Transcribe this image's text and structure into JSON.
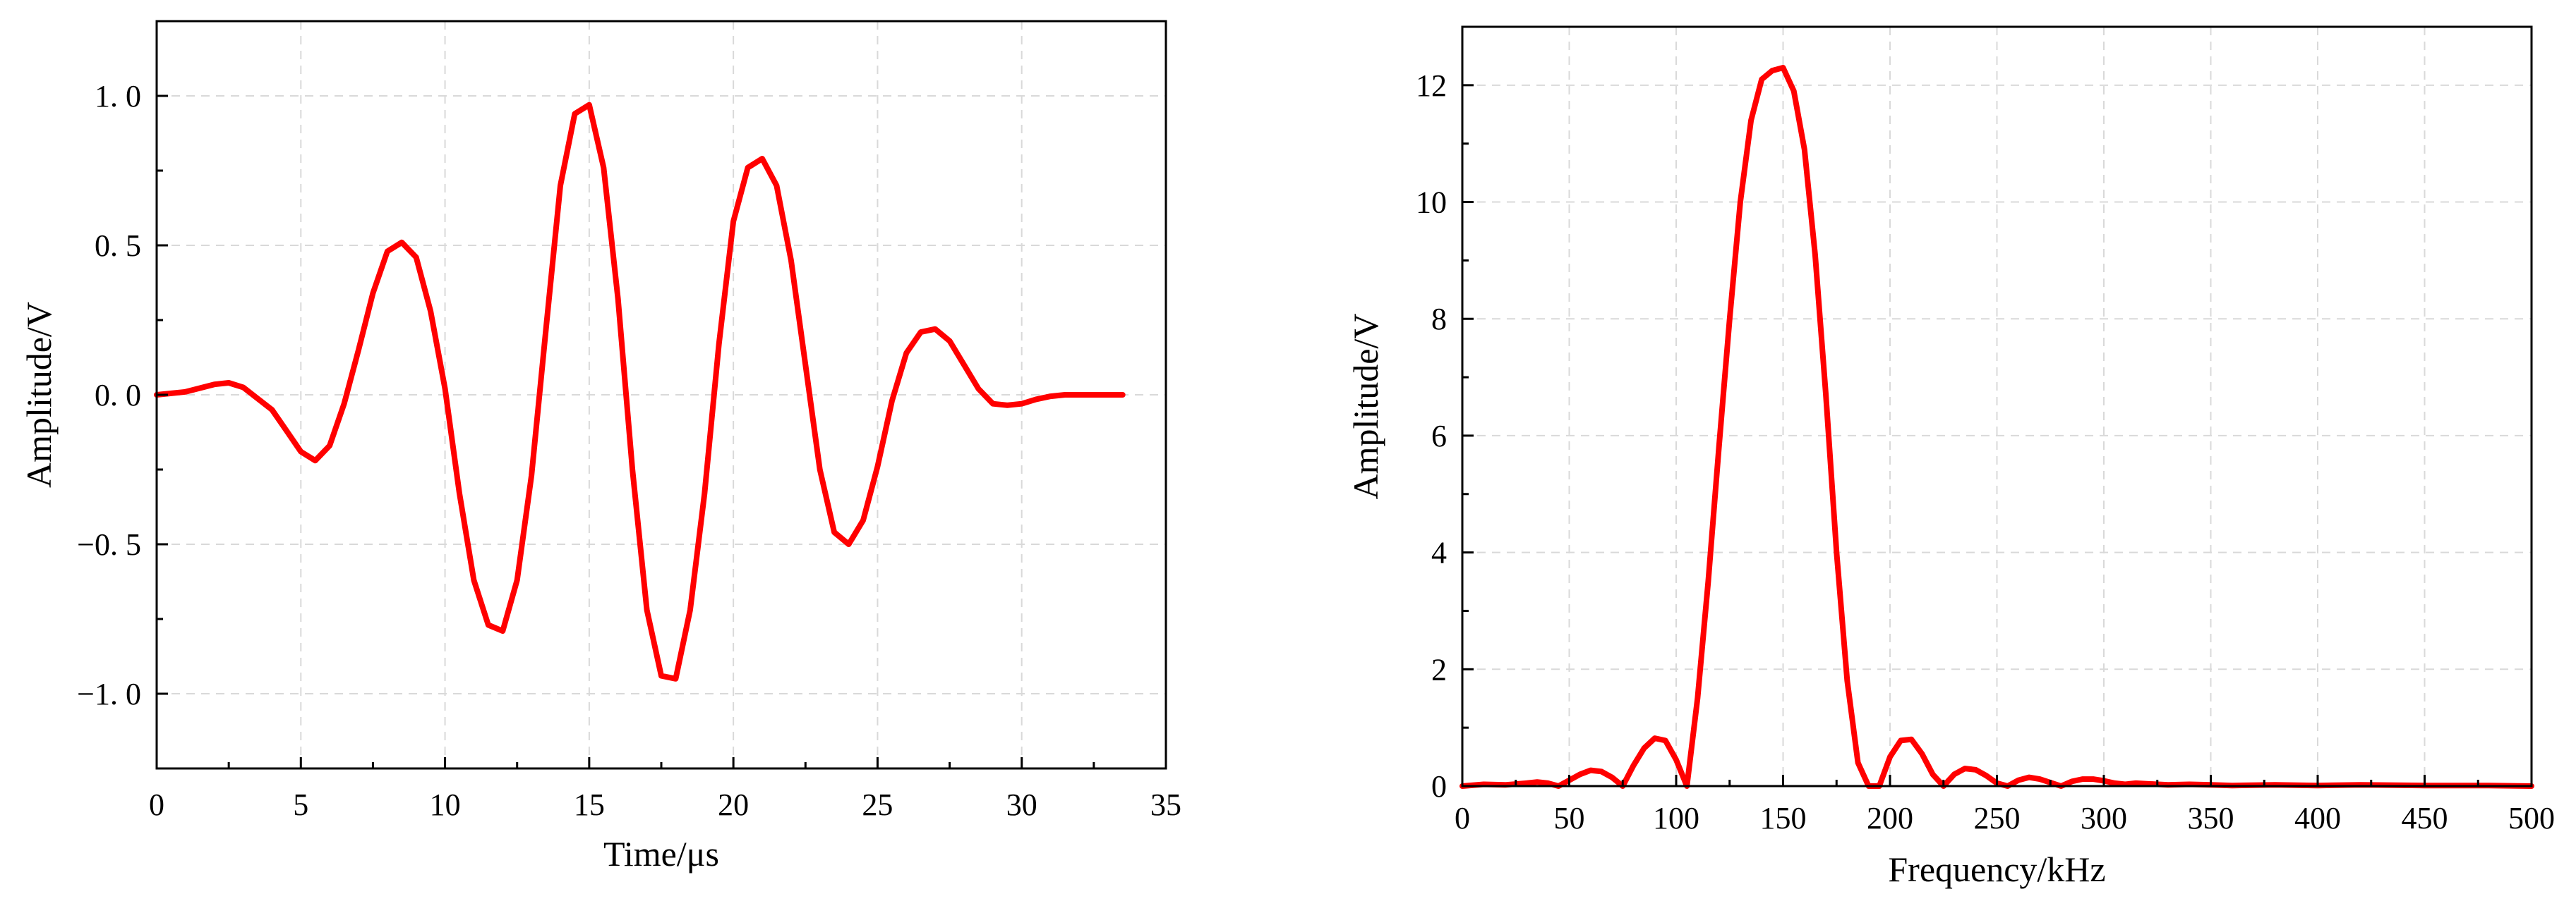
{
  "colors": {
    "series": "#ff0000",
    "grid": "#d9d9d9",
    "axis": "#000000"
  },
  "chart_data": [
    {
      "type": "line",
      "xlabel": "Time/μs",
      "ylabel": "Amplitude/V",
      "xlim": [
        0,
        35
      ],
      "ylim": [
        -1.25,
        1.25
      ],
      "xticks": [
        0,
        5,
        10,
        15,
        20,
        25,
        30,
        35
      ],
      "xtick_labels": [
        "0",
        "5",
        "10",
        "15",
        "20",
        "25",
        "30",
        "35"
      ],
      "yticks": [
        -1.0,
        -0.5,
        0.0,
        0.5,
        1.0
      ],
      "ytick_labels": [
        "−1. 0",
        "−0. 5",
        "0. 0",
        "0. 5",
        "1. 0"
      ],
      "grid": true,
      "series": [
        {
          "color": "#ff0000",
          "x": [
            0,
            1,
            2,
            2.5,
            3,
            4,
            4.5,
            5,
            5.5,
            6,
            6.5,
            7,
            7.5,
            8,
            8.5,
            9,
            9.5,
            10,
            10.5,
            11,
            11.5,
            12,
            12.5,
            13,
            13.5,
            14,
            14.5,
            15,
            15.5,
            16,
            16.5,
            17,
            17.5,
            18,
            18.5,
            19,
            19.5,
            20,
            20.5,
            21,
            21.5,
            22,
            22.5,
            23,
            23.5,
            24,
            24.5,
            25,
            25.5,
            26,
            26.5,
            27,
            27.5,
            28,
            28.5,
            29,
            29.5,
            30,
            30.5,
            31,
            31.5,
            32,
            32.5,
            33,
            33.5
          ],
          "y": [
            0.0,
            0.01,
            0.035,
            0.04,
            0.025,
            -0.05,
            -0.12,
            -0.19,
            -0.22,
            -0.17,
            -0.03,
            0.15,
            0.34,
            0.48,
            0.51,
            0.46,
            0.28,
            0.02,
            -0.33,
            -0.62,
            -0.77,
            -0.79,
            -0.62,
            -0.27,
            0.22,
            0.7,
            0.94,
            0.97,
            0.76,
            0.32,
            -0.25,
            -0.72,
            -0.94,
            -0.95,
            -0.72,
            -0.33,
            0.17,
            0.58,
            0.76,
            0.79,
            0.7,
            0.45,
            0.1,
            -0.25,
            -0.46,
            -0.5,
            -0.42,
            -0.24,
            -0.02,
            0.14,
            0.21,
            0.22,
            0.18,
            0.1,
            0.02,
            -0.03,
            -0.035,
            -0.03,
            -0.015,
            -0.005,
            0.0,
            0.0,
            0.0,
            0.0,
            0.0
          ]
        }
      ]
    },
    {
      "type": "line",
      "xlabel": "Frequency/kHz",
      "ylabel": "Amplitude/V",
      "xlim": [
        0,
        500
      ],
      "ylim": [
        0,
        13
      ],
      "xticks": [
        0,
        50,
        100,
        150,
        200,
        250,
        300,
        350,
        400,
        450,
        500
      ],
      "xtick_labels": [
        "0",
        "50",
        "100",
        "150",
        "200",
        "250",
        "300",
        "350",
        "400",
        "450",
        "500"
      ],
      "yticks": [
        0,
        2,
        4,
        6,
        8,
        10,
        12
      ],
      "ytick_labels": [
        "0",
        "2",
        "4",
        "6",
        "8",
        "10",
        "12"
      ],
      "grid": true,
      "series": [
        {
          "color": "#ff0000",
          "x": [
            0,
            10,
            20,
            30,
            35,
            40,
            45,
            50,
            55,
            60,
            65,
            70,
            75,
            80,
            85,
            90,
            95,
            100,
            105,
            110,
            115,
            120,
            125,
            130,
            135,
            140,
            145,
            150,
            155,
            160,
            165,
            170,
            175,
            180,
            185,
            190,
            195,
            200,
            205,
            210,
            215,
            220,
            225,
            230,
            235,
            240,
            245,
            250,
            255,
            260,
            265,
            270,
            275,
            280,
            285,
            290,
            295,
            300,
            305,
            310,
            315,
            320,
            330,
            340,
            350,
            360,
            380,
            400,
            420,
            450,
            480,
            500
          ],
          "y": [
            0.0,
            0.03,
            0.02,
            0.05,
            0.07,
            0.05,
            0.0,
            0.1,
            0.2,
            0.27,
            0.25,
            0.15,
            0.0,
            0.35,
            0.65,
            0.82,
            0.78,
            0.45,
            0.0,
            1.5,
            3.5,
            5.8,
            8.0,
            10.0,
            11.4,
            12.1,
            12.25,
            12.3,
            11.9,
            10.9,
            9.1,
            6.7,
            4.0,
            1.8,
            0.4,
            0.0,
            0.0,
            0.5,
            0.78,
            0.8,
            0.55,
            0.2,
            0.0,
            0.2,
            0.3,
            0.28,
            0.18,
            0.05,
            0.0,
            0.1,
            0.15,
            0.12,
            0.06,
            0.0,
            0.08,
            0.12,
            0.12,
            0.09,
            0.05,
            0.03,
            0.05,
            0.04,
            0.02,
            0.03,
            0.02,
            0.01,
            0.02,
            0.01,
            0.02,
            0.01,
            0.01,
            0.0
          ]
        }
      ]
    }
  ]
}
